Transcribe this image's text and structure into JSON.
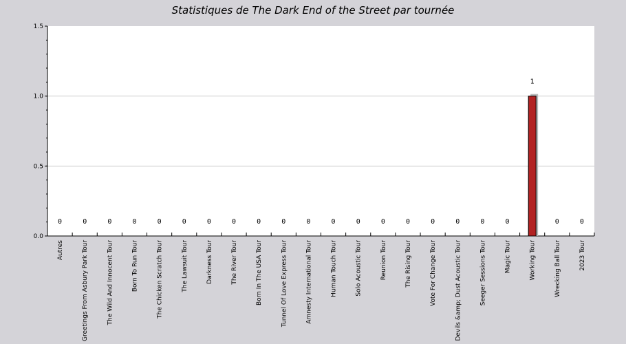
{
  "chart_data": {
    "type": "bar",
    "title": "Statistiques de The Dark End of the Street par tournée",
    "xlabel": "",
    "ylabel": "",
    "ylim": [
      0,
      1.5
    ],
    "yticks": [
      "0.0",
      "0.5",
      "1.0",
      "1.5"
    ],
    "grid": true,
    "bar_color": "#b22222",
    "categories": [
      "Autres",
      "Greetings From Asbury Park Tour",
      "The Wild And Innocent Tour",
      "Born To Run Tour",
      "The Chicken Scratch Tour",
      "The Lawsuit Tour",
      "Darkness Tour",
      "The River Tour",
      "Born In The USA Tour",
      "Tunnel Of Love Express Tour",
      "Amnesty International Tour",
      "Human Touch Tour",
      "Solo Acoustic Tour",
      "Reunion Tour",
      "The Rising Tour",
      "Vote For Change Tour",
      "Devils &amp; Dust Acoustic Tour",
      "Seeger Sessions Tour",
      "Magic Tour",
      "Working Tour",
      "Wrecking Ball Tour",
      "2023 Tour"
    ],
    "values": [
      0,
      0,
      0,
      0,
      0,
      0,
      0,
      0,
      0,
      0,
      0,
      0,
      0,
      0,
      0,
      0,
      0,
      0,
      0,
      1,
      0,
      0
    ],
    "value_labels": [
      "0",
      "0",
      "0",
      "0",
      "0",
      "0",
      "0",
      "0",
      "0",
      "0",
      "0",
      "0",
      "0",
      "0",
      "0",
      "0",
      "0",
      "0",
      "0",
      "1",
      "0",
      "0"
    ]
  }
}
